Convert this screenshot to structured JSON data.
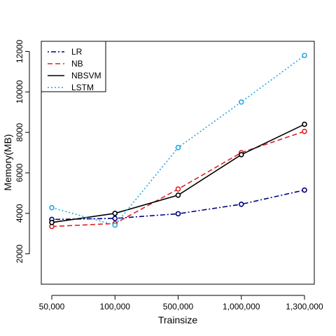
{
  "chart_data": {
    "type": "line",
    "title": "",
    "xlabel": "Trainsize",
    "ylabel": "Memory(MB)",
    "categories": [
      "50,000",
      "100,000",
      "500,000",
      "1,000,000",
      "1,300,000"
    ],
    "ylim": [
      500,
      12500
    ],
    "yticks": [
      2000,
      4000,
      6000,
      8000,
      10000,
      12000
    ],
    "legend_position": "top-left",
    "grid": false,
    "series": [
      {
        "name": "LR",
        "color": "#000080",
        "dash": "dotdash",
        "values": [
          3700,
          3750,
          3980,
          4450,
          5150
        ]
      },
      {
        "name": "NB",
        "color": "#dd2222",
        "dash": "dashed",
        "values": [
          3350,
          3500,
          5200,
          7000,
          8050
        ]
      },
      {
        "name": "NBSVM",
        "color": "#000000",
        "dash": "solid",
        "values": [
          3550,
          4000,
          4900,
          6900,
          8400
        ]
      },
      {
        "name": "LSTM",
        "color": "#22a8e0",
        "dash": "dotted",
        "values": [
          4280,
          3420,
          7250,
          9500,
          11800
        ]
      }
    ]
  }
}
